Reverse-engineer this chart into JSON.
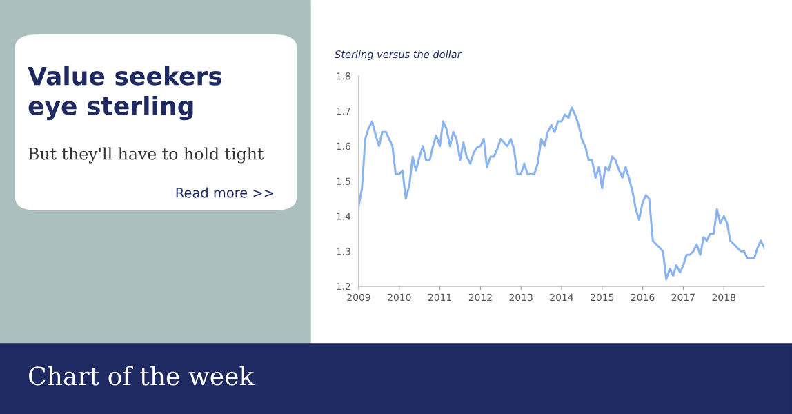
{
  "chart_data": {
    "type": "line",
    "title": "Sterling versus the dollar",
    "annotations": [
      "Value seekers eye sterling",
      "But they'll have to hold tight",
      "Read more >>",
      "Chart of the week"
    ],
    "x": [
      2009.0,
      2009.08,
      2009.16,
      2009.24,
      2009.33,
      2009.42,
      2009.5,
      2009.58,
      2009.67,
      2009.75,
      2009.83,
      2009.91,
      2010.0,
      2010.08,
      2010.16,
      2010.25,
      2010.33,
      2010.41,
      2010.5,
      2010.58,
      2010.66,
      2010.75,
      2010.83,
      2010.91,
      2011.0,
      2011.08,
      2011.16,
      2011.25,
      2011.33,
      2011.41,
      2011.5,
      2011.58,
      2011.66,
      2011.75,
      2011.83,
      2011.91,
      2012.0,
      2012.08,
      2012.16,
      2012.25,
      2012.33,
      2012.41,
      2012.5,
      2012.58,
      2012.66,
      2012.75,
      2012.83,
      2012.91,
      2013.0,
      2013.08,
      2013.16,
      2013.25,
      2013.33,
      2013.41,
      2013.5,
      2013.58,
      2013.66,
      2013.75,
      2013.83,
      2013.91,
      2014.0,
      2014.08,
      2014.17,
      2014.25,
      2014.33,
      2014.42,
      2014.5,
      2014.58,
      2014.67,
      2014.75,
      2014.84,
      2014.92,
      2015.0,
      2015.08,
      2015.16,
      2015.25,
      2015.33,
      2015.42,
      2015.5,
      2015.58,
      2015.66,
      2015.75,
      2015.83,
      2015.91,
      2016.0,
      2016.08,
      2016.16,
      2016.25,
      2016.33,
      2016.42,
      2016.5,
      2016.58,
      2016.67,
      2016.75,
      2016.83,
      2016.92,
      2017.0,
      2017.08,
      2017.16,
      2017.25,
      2017.33,
      2017.42,
      2017.5,
      2017.58,
      2017.66,
      2017.75,
      2017.83,
      2017.91,
      2018.0,
      2018.08,
      2018.16,
      2018.25,
      2018.33,
      2018.42,
      2018.5,
      2018.58,
      2018.66,
      2018.75,
      2018.83,
      2018.91,
      2019.0
    ],
    "series": [
      {
        "color": "#8ab4f0",
        "values": [
          1.43,
          1.48,
          1.62,
          1.65,
          1.67,
          1.63,
          1.6,
          1.64,
          1.64,
          1.62,
          1.6,
          1.52,
          1.52,
          1.53,
          1.45,
          1.49,
          1.57,
          1.53,
          1.57,
          1.6,
          1.56,
          1.56,
          1.6,
          1.63,
          1.6,
          1.67,
          1.65,
          1.6,
          1.64,
          1.62,
          1.56,
          1.61,
          1.57,
          1.55,
          1.58,
          1.595,
          1.6,
          1.62,
          1.54,
          1.57,
          1.57,
          1.59,
          1.62,
          1.61,
          1.6,
          1.62,
          1.59,
          1.52,
          1.52,
          1.55,
          1.52,
          1.52,
          1.52,
          1.55,
          1.62,
          1.6,
          1.64,
          1.66,
          1.64,
          1.67,
          1.67,
          1.69,
          1.68,
          1.71,
          1.69,
          1.66,
          1.62,
          1.6,
          1.56,
          1.56,
          1.51,
          1.54,
          1.48,
          1.54,
          1.53,
          1.57,
          1.56,
          1.53,
          1.51,
          1.54,
          1.51,
          1.47,
          1.42,
          1.39,
          1.44,
          1.46,
          1.45,
          1.33,
          1.32,
          1.31,
          1.3,
          1.22,
          1.25,
          1.23,
          1.26,
          1.24,
          1.26,
          1.29,
          1.29,
          1.3,
          1.32,
          1.29,
          1.34,
          1.33,
          1.35,
          1.35,
          1.42,
          1.38,
          1.4,
          1.38,
          1.33,
          1.32,
          1.31,
          1.3,
          1.3,
          1.28,
          1.28,
          1.28,
          1.31,
          1.33,
          1.31
        ]
      }
    ],
    "xlim": [
      2009,
      2019
    ],
    "xticks": [
      2009,
      2010,
      2011,
      2012,
      2013,
      2014,
      2015,
      2016,
      2017,
      2018
    ],
    "ylim": [
      1.2,
      1.8
    ],
    "yticks": [
      1.2,
      1.3,
      1.4,
      1.5,
      1.6,
      1.7,
      1.8
    ],
    "grid": false,
    "legend": false,
    "marker": "none",
    "line_style": "solid"
  }
}
